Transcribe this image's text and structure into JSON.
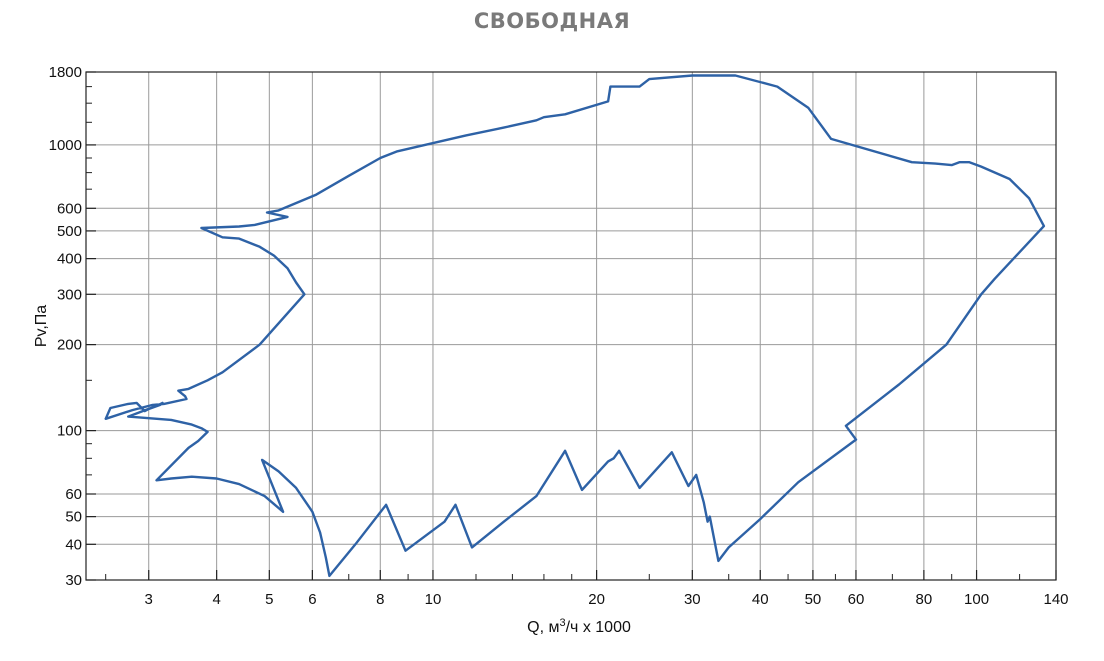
{
  "chart_data": {
    "type": "line",
    "title": "СВОБОДНАЯ",
    "xlabel": {
      "prefix": "Q, м",
      "superscript": "3",
      "suffix": "/ч x 1000"
    },
    "ylabel": "Pv,Па",
    "x_scale": "log",
    "y_scale": "log",
    "xlim": [
      2.3,
      140
    ],
    "ylim": [
      30,
      1800
    ],
    "x_major_ticks": [
      3,
      4,
      5,
      6,
      8,
      10,
      20,
      30,
      40,
      50,
      60,
      80,
      100,
      140
    ],
    "x_tick_labels": [
      "3",
      "4",
      "5",
      "6",
      "8",
      "10",
      "20",
      "30",
      "40",
      "50",
      "60",
      "80",
      "100",
      "140"
    ],
    "x_minor_ticks": [
      2.5,
      7,
      9,
      12,
      14,
      16,
      18,
      25,
      35,
      45,
      55,
      70,
      90,
      120
    ],
    "y_major_ticks": [
      30,
      40,
      50,
      60,
      100,
      200,
      300,
      400,
      500,
      600,
      1000,
      1800
    ],
    "y_tick_labels": [
      "30",
      "40",
      "50",
      "60",
      "100",
      "200",
      "300",
      "400",
      "500",
      "600",
      "1000",
      "1800"
    ],
    "y_minor_ticks": [
      70,
      80,
      90,
      150,
      700,
      800,
      900,
      1200,
      1400,
      1600
    ],
    "grid": true,
    "colors": {
      "curve": "#2e62a6",
      "grid": "#9a9a9a",
      "title": "#7a7a7a",
      "axis": "#222222"
    },
    "series": [
      {
        "points": [
          [
            2.5,
            110
          ],
          [
            2.55,
            120
          ],
          [
            2.75,
            124
          ],
          [
            2.85,
            125
          ],
          [
            2.9,
            121
          ],
          [
            2.95,
            117
          ],
          [
            3.0,
            119
          ],
          [
            3.15,
            123
          ],
          [
            3.18,
            125
          ],
          [
            3.1,
            122
          ],
          [
            2.75,
            112
          ],
          [
            3.3,
            109
          ],
          [
            3.6,
            105
          ],
          [
            3.75,
            102
          ],
          [
            3.85,
            99
          ],
          [
            3.7,
            92
          ],
          [
            3.55,
            87
          ],
          [
            3.1,
            67
          ],
          [
            3.3,
            68
          ],
          [
            3.6,
            69
          ],
          [
            4.0,
            68
          ],
          [
            4.4,
            65
          ],
          [
            4.9,
            59
          ],
          [
            5.3,
            52
          ],
          [
            4.85,
            79
          ],
          [
            5.2,
            72
          ],
          [
            5.6,
            63
          ],
          [
            6.0,
            52
          ],
          [
            6.2,
            44
          ],
          [
            6.35,
            36
          ],
          [
            6.45,
            31
          ],
          [
            7.2,
            40
          ],
          [
            8.2,
            55
          ],
          [
            8.9,
            38
          ],
          [
            10.5,
            48
          ],
          [
            11.0,
            55
          ],
          [
            11.8,
            39
          ],
          [
            13.5,
            48
          ],
          [
            15.5,
            59
          ],
          [
            17.5,
            85
          ],
          [
            18.8,
            62
          ],
          [
            21.0,
            78
          ],
          [
            21.5,
            80
          ],
          [
            22.0,
            85
          ],
          [
            24.0,
            63
          ],
          [
            27.5,
            84
          ],
          [
            29.5,
            64
          ],
          [
            30.5,
            70
          ],
          [
            31.5,
            56
          ],
          [
            32.0,
            48
          ],
          [
            32.3,
            50
          ],
          [
            33.5,
            35
          ],
          [
            35.0,
            39
          ],
          [
            40.0,
            49
          ],
          [
            47.0,
            66
          ],
          [
            60.0,
            93
          ],
          [
            57.5,
            104
          ],
          [
            72.0,
            145
          ],
          [
            88.0,
            200
          ],
          [
            102.0,
            300
          ],
          [
            108.0,
            340
          ],
          [
            133.0,
            520
          ],
          [
            125.0,
            650
          ],
          [
            115.0,
            760
          ],
          [
            102.0,
            840
          ],
          [
            97.0,
            870
          ],
          [
            93.0,
            870
          ],
          [
            90.0,
            850
          ],
          [
            84.0,
            860
          ],
          [
            76.0,
            870
          ],
          [
            54.0,
            1050
          ],
          [
            49.0,
            1350
          ],
          [
            43.0,
            1600
          ],
          [
            36.0,
            1750
          ],
          [
            30.0,
            1750
          ],
          [
            25.0,
            1700
          ],
          [
            24.0,
            1600
          ],
          [
            21.7,
            1600
          ],
          [
            21.2,
            1600
          ],
          [
            21.0,
            1420
          ],
          [
            17.5,
            1280
          ],
          [
            16.0,
            1250
          ],
          [
            15.5,
            1220
          ],
          [
            13.5,
            1150
          ],
          [
            11.5,
            1080
          ],
          [
            8.6,
            950
          ],
          [
            8.0,
            900
          ],
          [
            7.0,
            780
          ],
          [
            6.1,
            670
          ],
          [
            5.2,
            590
          ],
          [
            4.95,
            580
          ],
          [
            5.4,
            560
          ],
          [
            4.7,
            525
          ],
          [
            4.4,
            518
          ],
          [
            3.75,
            512
          ],
          [
            4.1,
            475
          ],
          [
            4.4,
            470
          ],
          [
            4.8,
            440
          ],
          [
            5.1,
            410
          ],
          [
            5.4,
            370
          ],
          [
            5.6,
            330
          ],
          [
            5.8,
            300
          ],
          [
            4.8,
            200
          ],
          [
            4.1,
            160
          ],
          [
            3.85,
            150
          ],
          [
            3.55,
            140
          ],
          [
            3.4,
            138
          ],
          [
            3.5,
            132
          ],
          [
            3.52,
            129
          ],
          [
            3.2,
            124
          ],
          [
            3.05,
            123
          ],
          [
            2.8,
            118
          ],
          [
            2.5,
            110
          ]
        ]
      }
    ]
  }
}
